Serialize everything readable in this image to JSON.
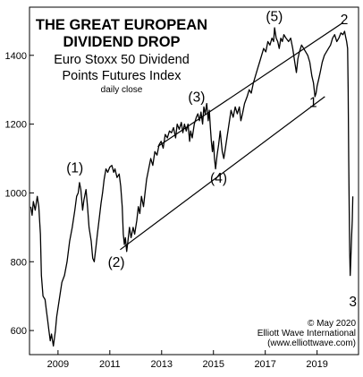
{
  "chart_data": {
    "type": "line",
    "title": "THE GREAT EUROPEAN DIVIDEND DROP",
    "title_lines": [
      "THE GREAT EUROPEAN",
      "DIVIDEND DROP"
    ],
    "subtitle_lines": [
      "Euro Stoxx 50 Dividend",
      "Points Futures Index"
    ],
    "note": "daily close",
    "xlabel": "",
    "ylabel": "",
    "xlim": [
      2007.9,
      2020.6
    ],
    "ylim": [
      530,
      1540
    ],
    "x_ticks": [
      2009,
      2011,
      2013,
      2015,
      2017,
      2019
    ],
    "y_ticks": [
      600,
      800,
      1000,
      1200,
      1400
    ],
    "grid": false,
    "series": [
      {
        "color": "#000000",
        "points": [
          [
            2007.95,
            960
          ],
          [
            2008.0,
            935
          ],
          [
            2008.05,
            975
          ],
          [
            2008.12,
            950
          ],
          [
            2008.2,
            990
          ],
          [
            2008.26,
            960
          ],
          [
            2008.32,
            880
          ],
          [
            2008.36,
            760
          ],
          [
            2008.42,
            700
          ],
          [
            2008.5,
            690
          ],
          [
            2008.55,
            660
          ],
          [
            2008.6,
            630
          ],
          [
            2008.65,
            600
          ],
          [
            2008.7,
            570
          ],
          [
            2008.75,
            590
          ],
          [
            2008.82,
            555
          ],
          [
            2008.9,
            600
          ],
          [
            2008.95,
            640
          ],
          [
            2009.05,
            690
          ],
          [
            2009.15,
            740
          ],
          [
            2009.25,
            760
          ],
          [
            2009.35,
            800
          ],
          [
            2009.45,
            860
          ],
          [
            2009.55,
            900
          ],
          [
            2009.65,
            950
          ],
          [
            2009.72,
            990
          ],
          [
            2009.78,
            1000
          ],
          [
            2009.83,
            1030
          ],
          [
            2009.88,
            1010
          ],
          [
            2009.95,
            950
          ],
          [
            2010.0,
            980
          ],
          [
            2010.08,
            1010
          ],
          [
            2010.14,
            960
          ],
          [
            2010.2,
            900
          ],
          [
            2010.28,
            860
          ],
          [
            2010.34,
            810
          ],
          [
            2010.4,
            800
          ],
          [
            2010.46,
            840
          ],
          [
            2010.52,
            880
          ],
          [
            2010.6,
            930
          ],
          [
            2010.66,
            970
          ],
          [
            2010.72,
            1000
          ],
          [
            2010.78,
            1040
          ],
          [
            2010.85,
            1070
          ],
          [
            2010.92,
            1060
          ],
          [
            2011.0,
            1075
          ],
          [
            2011.08,
            1080
          ],
          [
            2011.15,
            1060
          ],
          [
            2011.2,
            1070
          ],
          [
            2011.28,
            1045
          ],
          [
            2011.36,
            1055
          ],
          [
            2011.42,
            1020
          ],
          [
            2011.48,
            960
          ],
          [
            2011.52,
            880
          ],
          [
            2011.56,
            850
          ],
          [
            2011.6,
            870
          ],
          [
            2011.65,
            830
          ],
          [
            2011.7,
            860
          ],
          [
            2011.76,
            900
          ],
          [
            2011.82,
            870
          ],
          [
            2011.9,
            900
          ],
          [
            2011.96,
            880
          ],
          [
            2012.04,
            920
          ],
          [
            2012.1,
            960
          ],
          [
            2012.16,
            940
          ],
          [
            2012.22,
            990
          ],
          [
            2012.3,
            960
          ],
          [
            2012.36,
            1000
          ],
          [
            2012.42,
            1040
          ],
          [
            2012.5,
            1070
          ],
          [
            2012.58,
            1100
          ],
          [
            2012.66,
            1080
          ],
          [
            2012.74,
            1120
          ],
          [
            2012.82,
            1110
          ],
          [
            2012.9,
            1140
          ],
          [
            2012.98,
            1150
          ],
          [
            2013.06,
            1130
          ],
          [
            2013.14,
            1170
          ],
          [
            2013.22,
            1160
          ],
          [
            2013.3,
            1180
          ],
          [
            2013.38,
            1175
          ],
          [
            2013.46,
            1190
          ],
          [
            2013.54,
            1160
          ],
          [
            2013.6,
            1200
          ],
          [
            2013.68,
            1185
          ],
          [
            2013.76,
            1205
          ],
          [
            2013.82,
            1175
          ],
          [
            2013.88,
            1200
          ],
          [
            2013.95,
            1180
          ],
          [
            2014.02,
            1200
          ],
          [
            2014.08,
            1150
          ],
          [
            2014.12,
            1180
          ],
          [
            2014.18,
            1160
          ],
          [
            2014.26,
            1200
          ],
          [
            2014.34,
            1220
          ],
          [
            2014.4,
            1230
          ],
          [
            2014.46,
            1210
          ],
          [
            2014.52,
            1235
          ],
          [
            2014.58,
            1200
          ],
          [
            2014.63,
            1250
          ],
          [
            2014.68,
            1230
          ],
          [
            2014.74,
            1260
          ],
          [
            2014.8,
            1210
          ],
          [
            2014.84,
            1240
          ],
          [
            2014.88,
            1190
          ],
          [
            2014.92,
            1150
          ],
          [
            2014.96,
            1120
          ],
          [
            2015.0,
            1150
          ],
          [
            2015.04,
            1100
          ],
          [
            2015.08,
            1070
          ],
          [
            2015.14,
            1110
          ],
          [
            2015.2,
            1140
          ],
          [
            2015.26,
            1180
          ],
          [
            2015.3,
            1150
          ],
          [
            2015.34,
            1120
          ],
          [
            2015.4,
            1100
          ],
          [
            2015.46,
            1130
          ],
          [
            2015.52,
            1160
          ],
          [
            2015.6,
            1200
          ],
          [
            2015.68,
            1240
          ],
          [
            2015.76,
            1220
          ],
          [
            2015.84,
            1250
          ],
          [
            2015.92,
            1230
          ],
          [
            2016.0,
            1250
          ],
          [
            2016.06,
            1210
          ],
          [
            2016.12,
            1230
          ],
          [
            2016.2,
            1260
          ],
          [
            2016.3,
            1280
          ],
          [
            2016.38,
            1300
          ],
          [
            2016.46,
            1290
          ],
          [
            2016.54,
            1320
          ],
          [
            2016.62,
            1340
          ],
          [
            2016.7,
            1360
          ],
          [
            2016.78,
            1380
          ],
          [
            2016.86,
            1400
          ],
          [
            2016.94,
            1420
          ],
          [
            2017.02,
            1410
          ],
          [
            2017.1,
            1440
          ],
          [
            2017.18,
            1430
          ],
          [
            2017.26,
            1450
          ],
          [
            2017.32,
            1440
          ],
          [
            2017.36,
            1480
          ],
          [
            2017.42,
            1450
          ],
          [
            2017.48,
            1440
          ],
          [
            2017.54,
            1420
          ],
          [
            2017.6,
            1450
          ],
          [
            2017.66,
            1440
          ],
          [
            2017.72,
            1460
          ],
          [
            2017.8,
            1450
          ],
          [
            2017.9,
            1440
          ],
          [
            2017.98,
            1450
          ],
          [
            2018.06,
            1420
          ],
          [
            2018.14,
            1380
          ],
          [
            2018.2,
            1350
          ],
          [
            2018.26,
            1390
          ],
          [
            2018.32,
            1410
          ],
          [
            2018.4,
            1430
          ],
          [
            2018.48,
            1420
          ],
          [
            2018.56,
            1410
          ],
          [
            2018.64,
            1400
          ],
          [
            2018.72,
            1380
          ],
          [
            2018.8,
            1340
          ],
          [
            2018.86,
            1320
          ],
          [
            2018.92,
            1280
          ],
          [
            2018.96,
            1290
          ],
          [
            2019.0,
            1310
          ],
          [
            2019.06,
            1330
          ],
          [
            2019.12,
            1350
          ],
          [
            2019.2,
            1380
          ],
          [
            2019.28,
            1400
          ],
          [
            2019.36,
            1410
          ],
          [
            2019.44,
            1420
          ],
          [
            2019.52,
            1430
          ],
          [
            2019.6,
            1450
          ],
          [
            2019.68,
            1460
          ],
          [
            2019.76,
            1440
          ],
          [
            2019.84,
            1450
          ],
          [
            2019.92,
            1465
          ],
          [
            2020.0,
            1460
          ],
          [
            2020.06,
            1470
          ],
          [
            2020.1,
            1455
          ],
          [
            2020.14,
            1440
          ],
          [
            2020.18,
            1420
          ],
          [
            2020.2,
            1300
          ],
          [
            2020.22,
            1100
          ],
          [
            2020.24,
            950
          ],
          [
            2020.26,
            830
          ],
          [
            2020.28,
            760
          ],
          [
            2020.3,
            800
          ],
          [
            2020.33,
            870
          ],
          [
            2020.36,
            920
          ],
          [
            2020.38,
            990
          ]
        ]
      }
    ],
    "channel_lines": [
      {
        "points": [
          [
            2012.85,
            1135
          ],
          [
            2020.0,
            1495
          ]
        ]
      },
      {
        "points": [
          [
            2011.4,
            835
          ],
          [
            2019.3,
            1280
          ]
        ]
      }
    ],
    "annotations": [
      {
        "text": "(1)",
        "x": 2009.65,
        "y": 1060
      },
      {
        "text": "(2)",
        "x": 2011.25,
        "y": 785
      },
      {
        "text": "(3)",
        "x": 2014.35,
        "y": 1265
      },
      {
        "text": "(4)",
        "x": 2015.2,
        "y": 1030
      },
      {
        "text": "(5)",
        "x": 2017.35,
        "y": 1500
      },
      {
        "text": "1",
        "x": 2018.85,
        "y": 1250
      },
      {
        "text": "2",
        "x": 2020.05,
        "y": 1490
      },
      {
        "text": "3",
        "x": 2020.38,
        "y": 670
      }
    ],
    "credits": [
      "© May 2020",
      "Elliott Wave International",
      "(www.elliottwave.com)"
    ]
  }
}
